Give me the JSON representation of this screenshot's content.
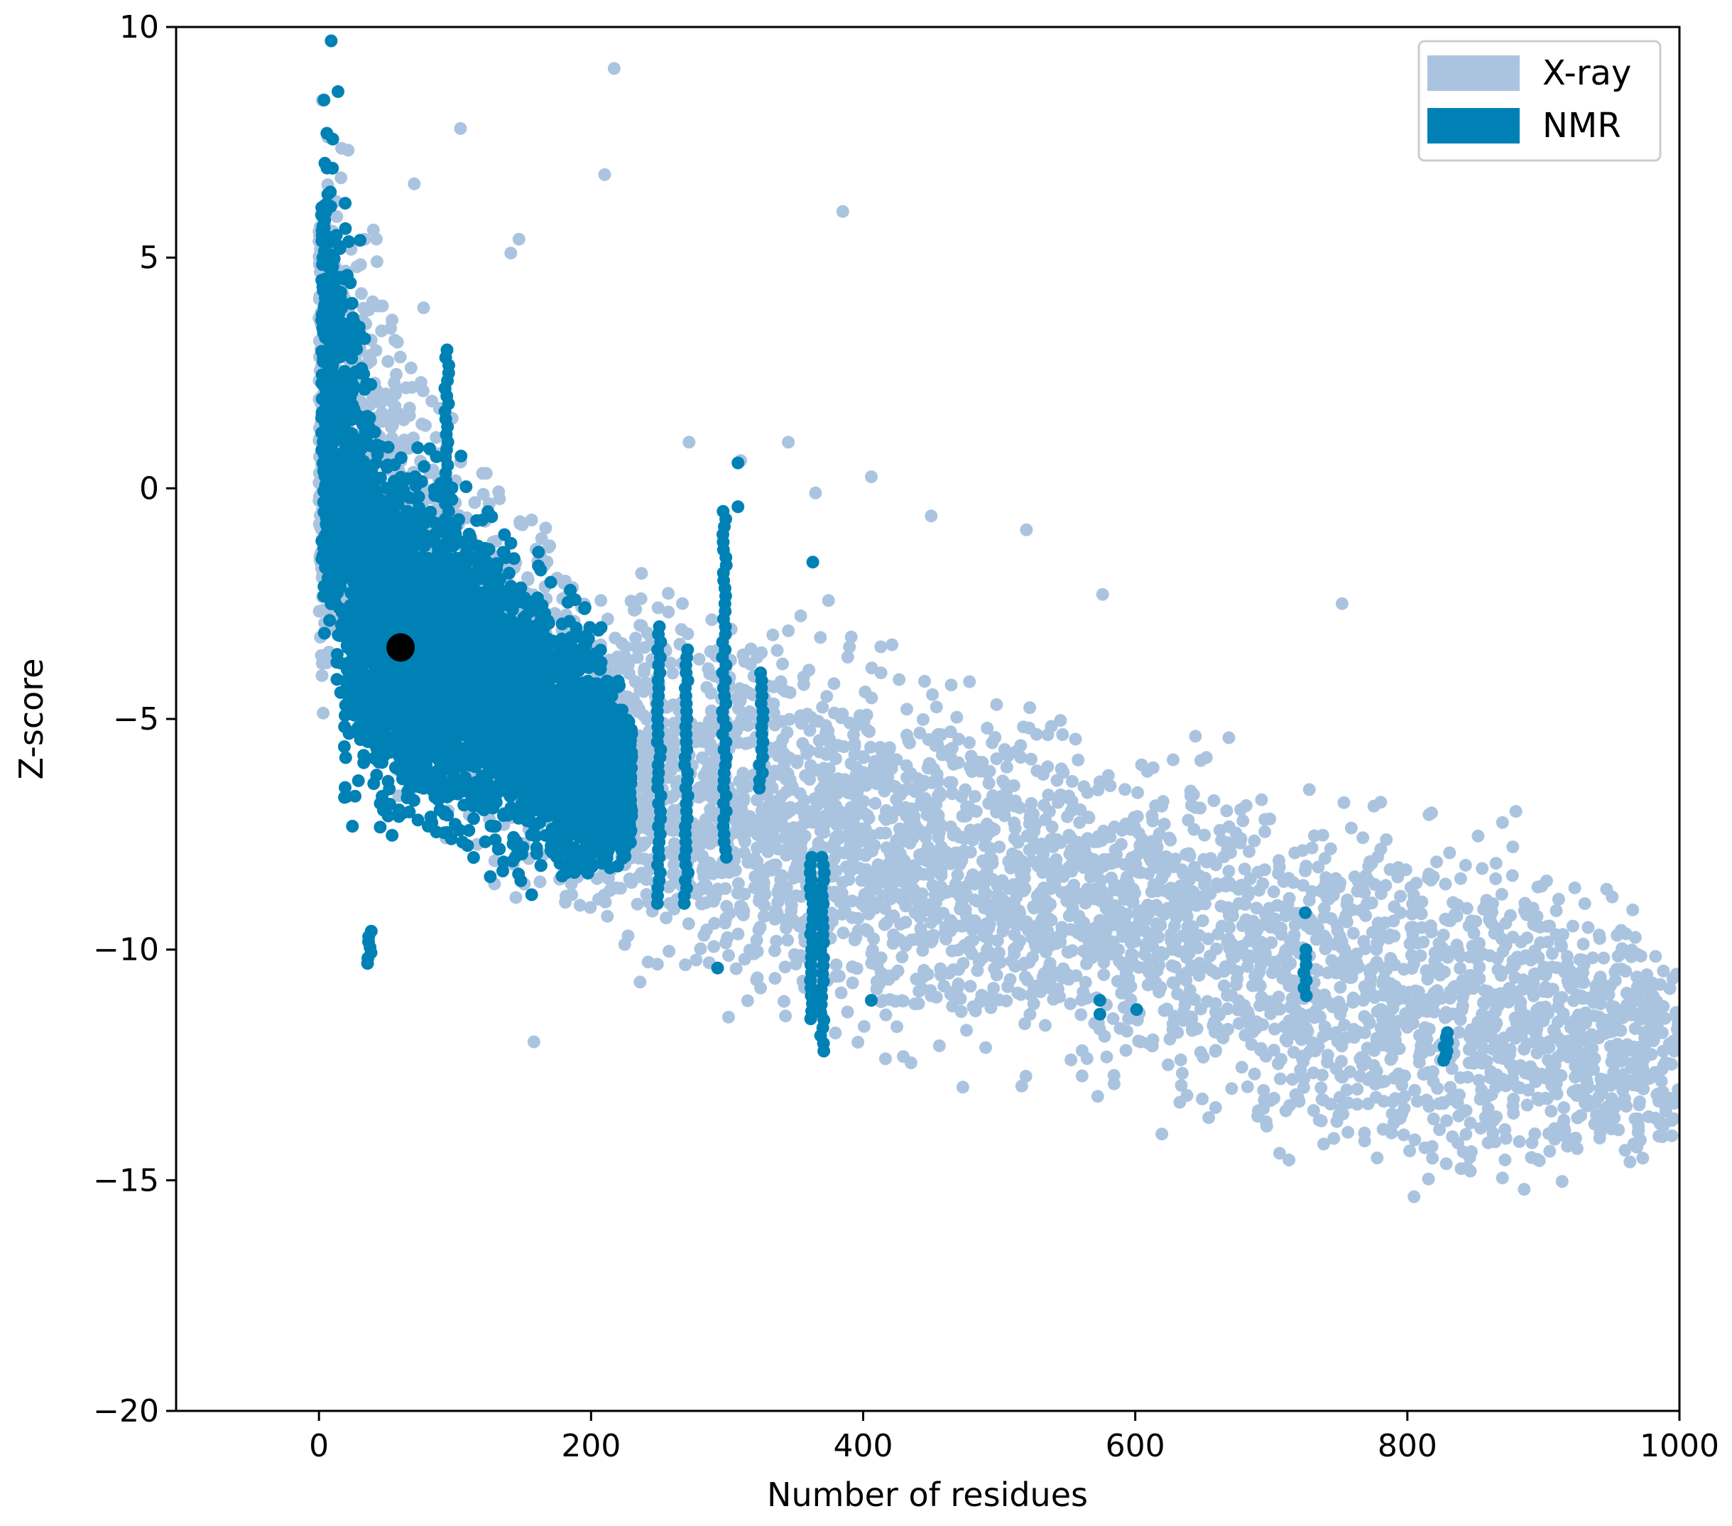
{
  "colors": {
    "xray": "#aac4e0",
    "nmr": "#0081b6",
    "query": "#000000",
    "axis": "#000000",
    "legend_border": "#cccccc",
    "background": "#ffffff"
  },
  "chart_data": {
    "type": "scatter",
    "title": "",
    "xlabel": "Number of residues",
    "ylabel": "Z-score",
    "xlim": [
      -105,
      1000
    ],
    "ylim": [
      -20,
      10
    ],
    "xticks": [
      0,
      200,
      400,
      600,
      800,
      1000
    ],
    "yticks": [
      -20,
      -15,
      -10,
      -5,
      0,
      5,
      10
    ],
    "xtick_labels": [
      "0",
      "200",
      "400",
      "600",
      "800",
      "1000"
    ],
    "ytick_labels": [
      "−20",
      "−15",
      "−10",
      "−5",
      "0",
      "5",
      "10"
    ],
    "grid": false,
    "legend": {
      "position": "top-right",
      "entries": [
        {
          "label": "X-ray",
          "color": "#aac4e0"
        },
        {
          "label": "NMR",
          "color": "#0081b6"
        }
      ]
    },
    "series": [
      {
        "name": "X-ray",
        "color": "#aac4e0",
        "description": "dense cloud of several thousand structures; Z-score decreases with residue count",
        "band_trend": [
          {
            "x": 0,
            "z_upper": 9.6,
            "z_lower": -6.0
          },
          {
            "x": 100,
            "z_upper": 2.5,
            "z_lower": -9.5
          },
          {
            "x": 200,
            "z_upper": -1.0,
            "z_lower": -10.5
          },
          {
            "x": 300,
            "z_upper": -1.5,
            "z_lower": -12.0
          },
          {
            "x": 400,
            "z_upper": -2.5,
            "z_lower": -13.0
          },
          {
            "x": 500,
            "z_upper": -3.5,
            "z_lower": -13.5
          },
          {
            "x": 600,
            "z_upper": -4.5,
            "z_lower": -14.0
          },
          {
            "x": 700,
            "z_upper": -5.0,
            "z_lower": -15.5
          },
          {
            "x": 800,
            "z_upper": -6.0,
            "z_lower": -16.0
          },
          {
            "x": 900,
            "z_upper": -6.5,
            "z_lower": -16.5
          },
          {
            "x": 1000,
            "z_upper": -9.5,
            "z_lower": -15.2
          }
        ],
        "outliers": [
          {
            "x": 217,
            "y": 9.1
          },
          {
            "x": 104,
            "y": 7.8
          },
          {
            "x": 70,
            "y": 6.6
          },
          {
            "x": 210,
            "y": 6.8
          },
          {
            "x": 385,
            "y": 6.0
          },
          {
            "x": 147,
            "y": 5.4
          },
          {
            "x": 141,
            "y": 5.1
          },
          {
            "x": 40,
            "y": 5.6
          },
          {
            "x": 158,
            "y": -12.0
          },
          {
            "x": 752,
            "y": -2.5
          },
          {
            "x": 576,
            "y": -2.3
          },
          {
            "x": 450,
            "y": -0.6
          },
          {
            "x": 520,
            "y": -0.9
          },
          {
            "x": 406,
            "y": 0.25
          },
          {
            "x": 345,
            "y": 1.0
          },
          {
            "x": 272,
            "y": 1.0
          },
          {
            "x": 310,
            "y": 0.6
          },
          {
            "x": 365,
            "y": -0.1
          }
        ]
      },
      {
        "name": "NMR",
        "color": "#0081b6",
        "description": "NMR structures concentrated at 0–230 residues with scattered columns beyond",
        "band_trend": [
          {
            "x": 0,
            "z_upper": 9.7,
            "z_lower": -3.0
          },
          {
            "x": 20,
            "z_upper": 7.5,
            "z_lower": -9.0
          },
          {
            "x": 50,
            "z_upper": 2.0,
            "z_lower": -8.5
          },
          {
            "x": 100,
            "z_upper": 1.0,
            "z_lower": -8.5
          },
          {
            "x": 150,
            "z_upper": -0.5,
            "z_lower": -9.0
          },
          {
            "x": 200,
            "z_upper": -2.0,
            "z_lower": -9.5
          },
          {
            "x": 230,
            "z_upper": -4.5,
            "z_lower": -8.5
          }
        ],
        "columns": [
          {
            "x": 94,
            "y_top": 3.0,
            "y_bottom": -5.0
          },
          {
            "x": 37,
            "y_top": -9.6,
            "y_bottom": -10.3
          },
          {
            "x": 250,
            "y_top": -3.0,
            "y_bottom": -9.0
          },
          {
            "x": 270,
            "y_top": -3.5,
            "y_bottom": -9.0
          },
          {
            "x": 298,
            "y_top": -0.5,
            "y_bottom": -8.0
          },
          {
            "x": 325,
            "y_top": -4.0,
            "y_bottom": -6.5
          },
          {
            "x": 362,
            "y_top": -8.0,
            "y_bottom": -11.5
          },
          {
            "x": 370,
            "y_top": -8.0,
            "y_bottom": -12.2
          },
          {
            "x": 725,
            "y_top": -10.0,
            "y_bottom": -11.0
          },
          {
            "x": 828,
            "y_top": -11.8,
            "y_bottom": -12.4
          }
        ],
        "outliers": [
          {
            "x": 308,
            "y": 0.55
          },
          {
            "x": 308,
            "y": -0.4
          },
          {
            "x": 363,
            "y": -1.6
          },
          {
            "x": 293,
            "y": -10.4
          },
          {
            "x": 406,
            "y": -11.1
          },
          {
            "x": 574,
            "y": -11.1
          },
          {
            "x": 574,
            "y": -11.4
          },
          {
            "x": 601,
            "y": -11.3
          },
          {
            "x": 725,
            "y": -9.2
          },
          {
            "x": 14,
            "y": 8.6
          },
          {
            "x": 9,
            "y": 9.7
          },
          {
            "x": 20,
            "y": 2.3
          }
        ]
      }
    ],
    "query_point": {
      "x": 60,
      "y": -3.45,
      "color": "#000000"
    }
  }
}
